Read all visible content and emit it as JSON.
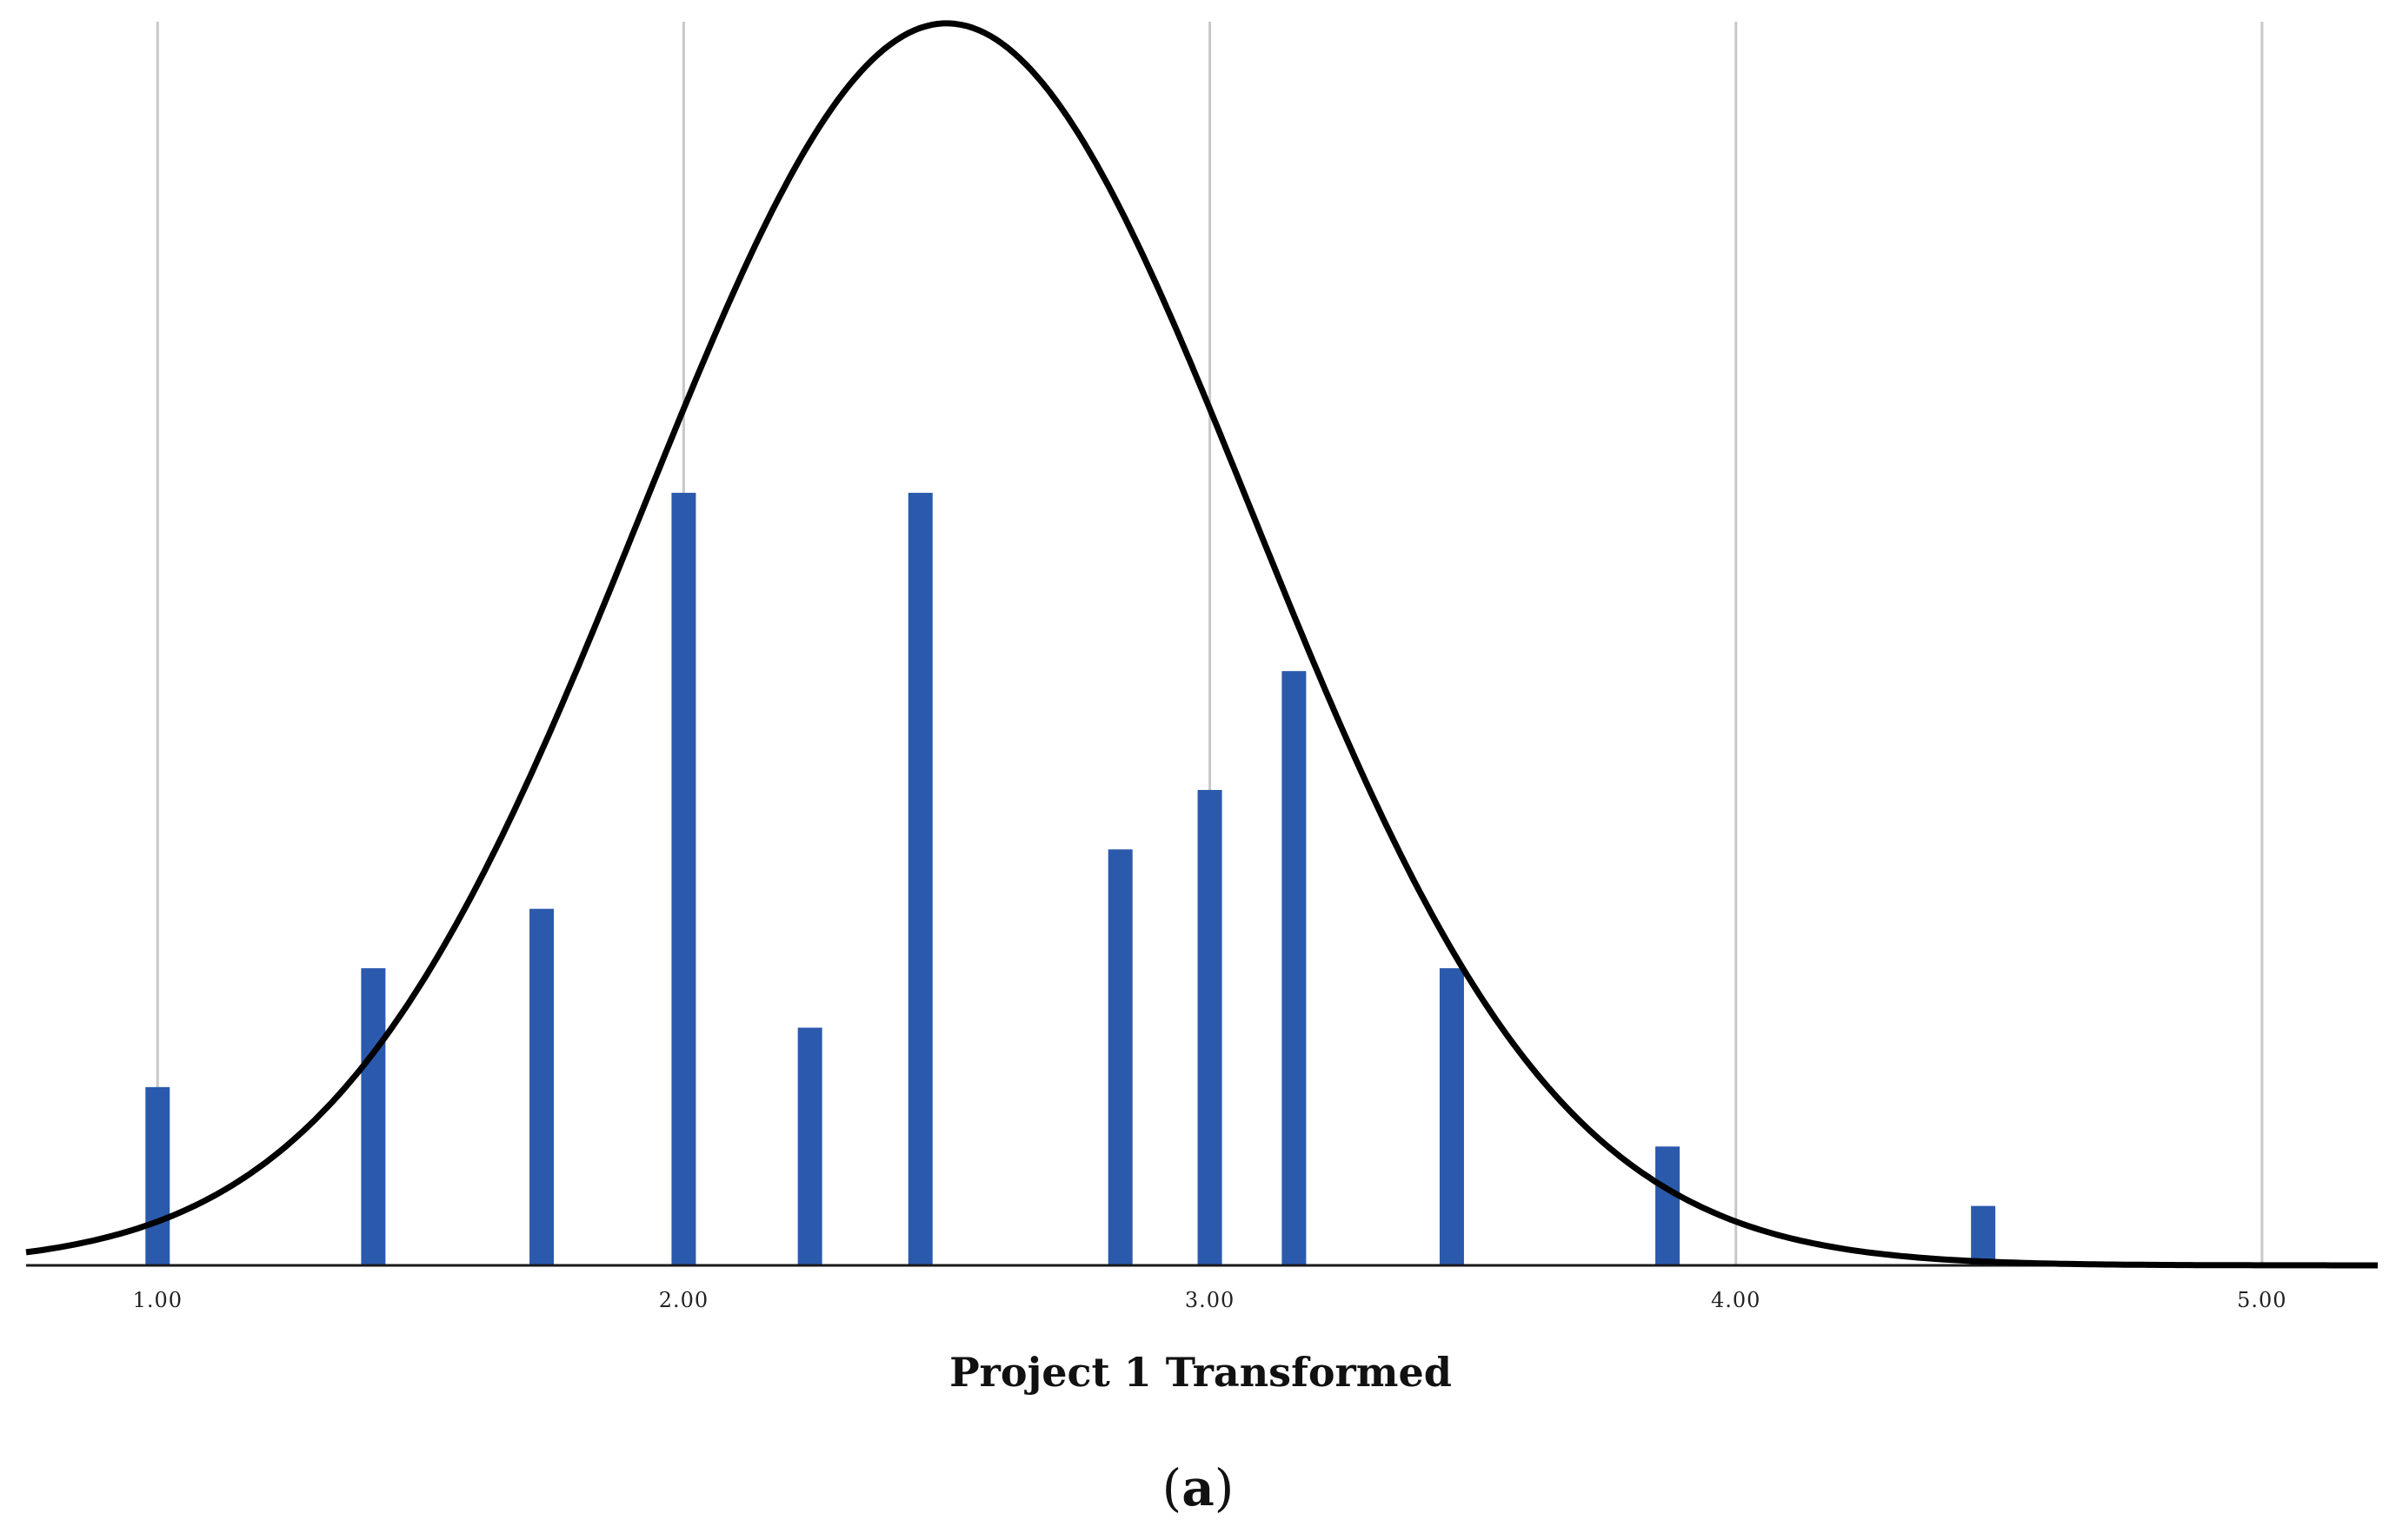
{
  "chart_data": {
    "type": "bar",
    "xlabel": "Project 1 Transformed",
    "ylabel": "",
    "xlim": [
      0.75,
      5.22
    ],
    "ylim": [
      0,
      21
    ],
    "x_ticks": [
      1,
      2,
      3,
      4,
      5
    ],
    "x_tick_labels": [
      "1.00",
      "2.00",
      "3.00",
      "4.00",
      "5.00"
    ],
    "grid": "vertical",
    "bars": [
      {
        "x": 1.0,
        "value": 3
      },
      {
        "x": 1.41,
        "value": 5
      },
      {
        "x": 1.73,
        "value": 6
      },
      {
        "x": 2.0,
        "value": 13
      },
      {
        "x": 2.24,
        "value": 4
      },
      {
        "x": 2.45,
        "value": 13
      },
      {
        "x": 2.83,
        "value": 7
      },
      {
        "x": 3.0,
        "value": 8
      },
      {
        "x": 3.16,
        "value": 10
      },
      {
        "x": 3.46,
        "value": 5
      },
      {
        "x": 3.87,
        "value": 2
      },
      {
        "x": 4.47,
        "value": 1
      }
    ],
    "normal_curve": {
      "mean": 2.5,
      "sd": 0.58,
      "peak": 20.9
    },
    "colors": {
      "bars": "#2b5aad",
      "curve": "#000000",
      "grid": "#c8c8c8"
    }
  },
  "caption": {
    "open": "(",
    "letter": "a",
    "close": ")"
  }
}
